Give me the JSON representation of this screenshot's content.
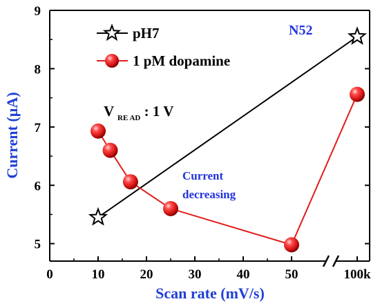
{
  "chart_data": {
    "type": "line",
    "xlabel": "Scan rate (mV/s)",
    "ylabel": "Current (µA)",
    "ylim": [
      4.7,
      9
    ],
    "xlim": [
      0,
      55
    ],
    "axis_break": "between 55 and 100k",
    "x_ticks": [
      "0",
      "10",
      "20",
      "30",
      "40",
      "50",
      "100k"
    ],
    "y_ticks": [
      "5",
      "6",
      "7",
      "8",
      "9"
    ],
    "series": [
      {
        "name": "pH7",
        "marker": "star-open",
        "color": "#000000",
        "points": [
          {
            "x": "10",
            "y": 5.45
          },
          {
            "x": "100k",
            "y": 8.55
          }
        ]
      },
      {
        "name": "1 pM dopamine",
        "marker": "sphere",
        "color": "#e11b1b",
        "points": [
          {
            "x": "10",
            "y": 6.93
          },
          {
            "x": "12.5",
            "y": 6.6
          },
          {
            "x": "16.7",
            "y": 6.06
          },
          {
            "x": "25",
            "y": 5.6
          },
          {
            "x": "50",
            "y": 4.98
          },
          {
            "x": "100k",
            "y": 7.56
          }
        ]
      }
    ],
    "annotations": {
      "sample": "N52",
      "read_prefix": "V",
      "read_sub": "RE AD",
      "read_value": ": 1 V",
      "trend_line1": "Current",
      "trend_line2": "decreasing"
    },
    "legend_position": "top-left",
    "colors": {
      "axis_label": "#1f3fd6",
      "annotation_blue": "#2233dd",
      "sphere_red": "#e11b1b"
    }
  }
}
